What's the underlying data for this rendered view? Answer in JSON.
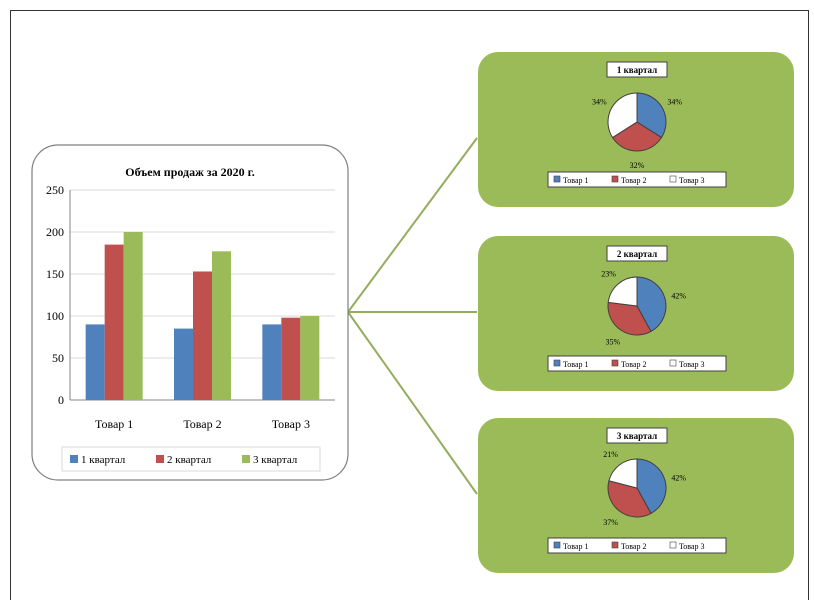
{
  "chart_data": [
    {
      "type": "bar",
      "title": "Объем продаж за 2020 г.",
      "categories": [
        "Товар 1",
        "Товар 2",
        "Товар 3"
      ],
      "series": [
        {
          "name": "1 квартал",
          "values": [
            90,
            85,
            90
          ],
          "color": "#4f81bd"
        },
        {
          "name": "2 квартал",
          "values": [
            185,
            153,
            98
          ],
          "color": "#c0504d"
        },
        {
          "name": "3 квартал",
          "values": [
            200,
            177,
            100
          ],
          "color": "#9bbb59"
        }
      ],
      "ylim": [
        0,
        250
      ],
      "yticks": [
        "0",
        "50",
        "100",
        "150",
        "200",
        "250"
      ],
      "grid": true,
      "legend": "bottom"
    },
    {
      "type": "pie",
      "title": "1 квартал",
      "labels": [
        "Товар 1",
        "Товар 2",
        "Товар 3"
      ],
      "values": [
        34,
        32,
        34
      ],
      "value_labels": [
        "34%",
        "32%",
        "34%"
      ],
      "colors": [
        "#4f81bd",
        "#c0504d",
        "#ffffff"
      ]
    },
    {
      "type": "pie",
      "title": "2 квартал",
      "labels": [
        "Товар 1",
        "Товар 2",
        "Товар 3"
      ],
      "values": [
        42,
        35,
        23
      ],
      "value_labels": [
        "42%",
        "35%",
        "23%"
      ],
      "colors": [
        "#4f81bd",
        "#c0504d",
        "#ffffff"
      ]
    },
    {
      "type": "pie",
      "title": "3 квартал",
      "labels": [
        "Товар 1",
        "Товар 2",
        "Товар 3"
      ],
      "values": [
        42,
        37,
        21
      ],
      "value_labels": [
        "42%",
        "37%",
        "21%"
      ],
      "colors": [
        "#4f81bd",
        "#c0504d",
        "#ffffff"
      ]
    }
  ],
  "colors": {
    "panel_green": "#9bbb59",
    "connector": "#94ad5d"
  }
}
